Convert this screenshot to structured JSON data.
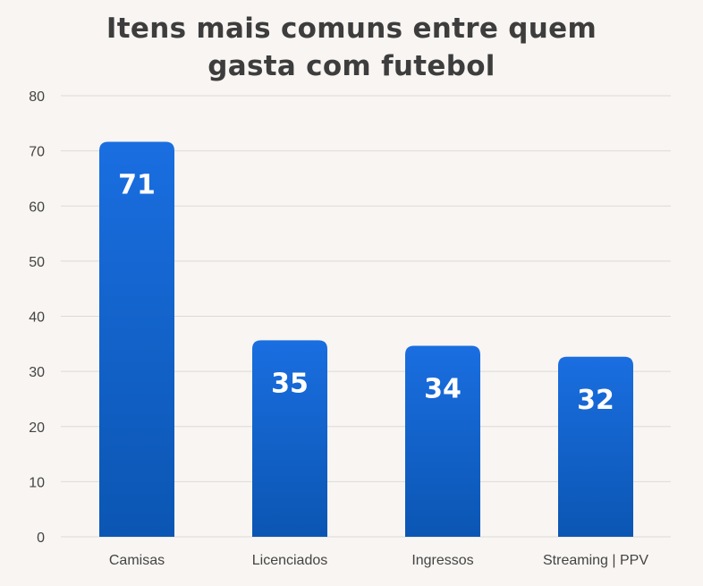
{
  "chart_data": {
    "type": "bar",
    "title_lines": [
      "Itens mais comuns entre quem",
      "gasta com futebol"
    ],
    "categories": [
      "Camisas",
      "Licenciados",
      "Ingressos",
      "Streaming | PPV"
    ],
    "values": [
      71,
      35,
      34,
      32
    ],
    "data_labels": [
      "71",
      "35",
      "34",
      "32"
    ],
    "ylim": [
      0,
      80
    ],
    "yticks": [
      0,
      10,
      20,
      30,
      40,
      50,
      60,
      70,
      80
    ],
    "grid": true,
    "legend": "none",
    "bar_color_top": "#1a6ee0",
    "bar_color_bottom": "#0b56b3",
    "grid_color": "#dcdad7"
  }
}
